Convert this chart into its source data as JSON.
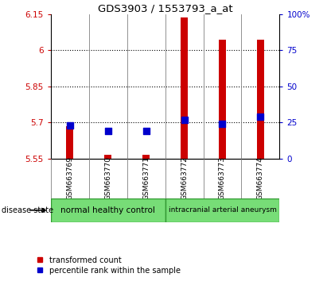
{
  "title": "GDS3903 / 1553793_a_at",
  "samples": [
    "GSM663769",
    "GSM663770",
    "GSM663771",
    "GSM663772",
    "GSM663773",
    "GSM663774"
  ],
  "transformed_count": [
    5.685,
    5.565,
    5.565,
    6.135,
    6.045,
    6.045
  ],
  "percentile_rank": [
    23,
    19,
    19,
    27,
    24,
    29
  ],
  "ylim_left": [
    5.55,
    6.15
  ],
  "ylim_right": [
    0,
    100
  ],
  "yticks_left": [
    5.55,
    5.7,
    5.85,
    6.0,
    6.15
  ],
  "yticks_right": [
    0,
    25,
    50,
    75,
    100
  ],
  "ytick_labels_left": [
    "5.55",
    "5.7",
    "5.85",
    "6",
    "6.15"
  ],
  "ytick_labels_right": [
    "0",
    "25",
    "50",
    "75",
    "100%"
  ],
  "bar_color": "#cc0000",
  "dot_color": "#0000cc",
  "bar_width": 0.18,
  "dot_size": 28,
  "background_color": "#ffffff",
  "sample_box_color": "#c8c8c8",
  "legend_red_label": "transformed count",
  "legend_blue_label": "percentile rank within the sample",
  "disease_state_label": "disease state",
  "group1_label": "normal healthy control",
  "group2_label": "intracranial arterial aneurysm",
  "group_bg_color": "#77dd77",
  "group_edge_color": "#339933"
}
